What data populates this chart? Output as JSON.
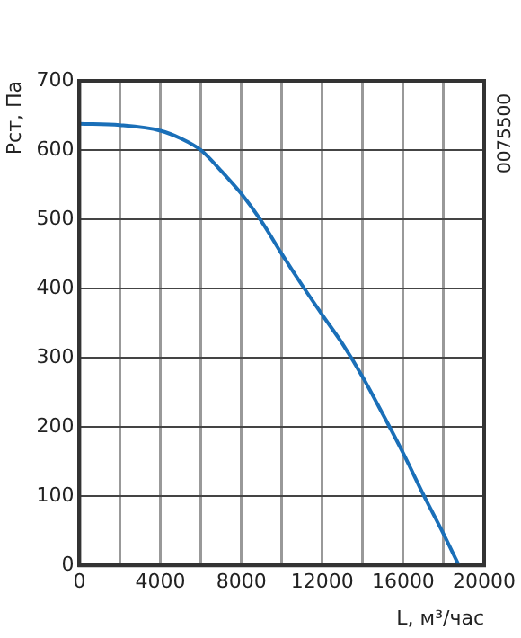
{
  "chart_data": {
    "type": "line",
    "xlabel": "L, м³/час",
    "ylabel": "Pст, Па",
    "annotations": [
      "0075500"
    ],
    "series": [
      {
        "color": "#1a6fb8",
        "x": [
          0,
          2000,
          4000,
          5000,
          6000,
          7000,
          8000,
          9000,
          10000,
          11000,
          12000,
          13000,
          14000,
          15000,
          16000,
          17000,
          18000,
          18750
        ],
        "values": [
          638,
          636,
          628,
          617,
          600,
          570,
          537,
          497,
          450,
          405,
          362,
          320,
          272,
          218,
          162,
          102,
          45,
          0
        ]
      }
    ],
    "xlim": [
      0,
      20000
    ],
    "ylim": [
      0,
      700
    ],
    "xticks": [
      0,
      {
        "value": 2000,
        "label": null
      },
      4000,
      {
        "value": 6000,
        "label": null
      },
      8000,
      {
        "value": 10000,
        "label": null
      },
      12000,
      {
        "value": 14000,
        "label": null
      },
      16000,
      {
        "value": 18000,
        "label": null
      },
      20000
    ],
    "yticks": [
      0,
      100,
      200,
      300,
      400,
      500,
      600,
      700
    ],
    "grid": true,
    "legend": false,
    "marker": "none",
    "line_style": "solid"
  }
}
